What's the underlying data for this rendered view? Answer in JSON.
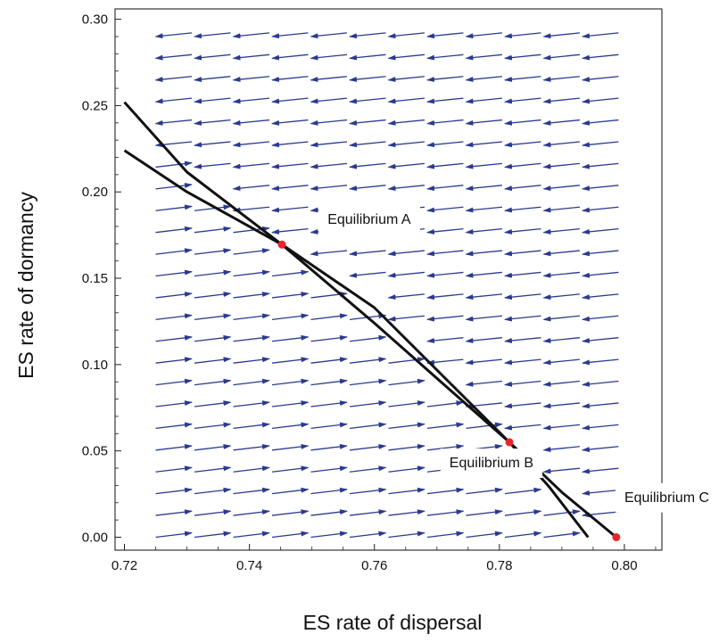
{
  "chart_data": {
    "type": "scatter",
    "title": "",
    "xlabel": "ES rate of dispersal",
    "ylabel": "ES rate of dormancy",
    "xlim": [
      0.7185,
      0.806
    ],
    "ylim": [
      -0.0075,
      0.306
    ],
    "x_ticks": [
      0.72,
      0.74,
      0.76,
      0.78,
      0.8
    ],
    "x_tick_labels": [
      "0.72",
      "0.74",
      "0.76",
      "0.78",
      "0.80"
    ],
    "y_ticks": [
      0.0,
      0.05,
      0.1,
      0.15,
      0.2,
      0.25,
      0.3
    ],
    "y_tick_labels": [
      "0.00",
      "0.05",
      "0.10",
      "0.15",
      "0.20",
      "0.25",
      "0.30"
    ],
    "grid": false,
    "colors": {
      "arrows": "#2b3a8f",
      "curves": "#111111",
      "equilibria": "#e8262a",
      "frame": "#222222"
    },
    "series": [
      {
        "kind": "line",
        "points": [
          [
            0.72,
            0.252
          ],
          [
            0.73,
            0.2115
          ],
          [
            0.7452,
            0.1695
          ],
          [
            0.76,
            0.124
          ],
          [
            0.7816,
            0.055
          ],
          [
            0.788,
            0.029
          ],
          [
            0.7942,
            0.0
          ]
        ]
      },
      {
        "kind": "line",
        "points": [
          [
            0.72,
            0.224
          ],
          [
            0.73,
            0.2
          ],
          [
            0.7452,
            0.1695
          ],
          [
            0.76,
            0.133
          ],
          [
            0.7816,
            0.055
          ],
          [
            0.79,
            0.026
          ],
          [
            0.7987,
            0.0
          ]
        ]
      },
      {
        "kind": "points",
        "points": [
          [
            0.7452,
            0.1695
          ],
          [
            0.7816,
            0.055
          ],
          [
            0.7987,
            0.0
          ]
        ]
      }
    ],
    "annotations": [
      {
        "text": "Equilibrium A",
        "x": 0.7525,
        "y": 0.1815
      },
      {
        "text": "Equilibrium B",
        "x": 0.772,
        "y": 0.0405
      },
      {
        "text": "Equilibrium C",
        "x": 0.8,
        "y": 0.0205
      }
    ],
    "stream_field": {
      "x_range": [
        0.725,
        0.7995
      ],
      "y_range": [
        0.0,
        0.29
      ],
      "rows": 24,
      "arrows_per_row": 12,
      "direction": "rightward below the curves, leftward above the curves"
    }
  }
}
